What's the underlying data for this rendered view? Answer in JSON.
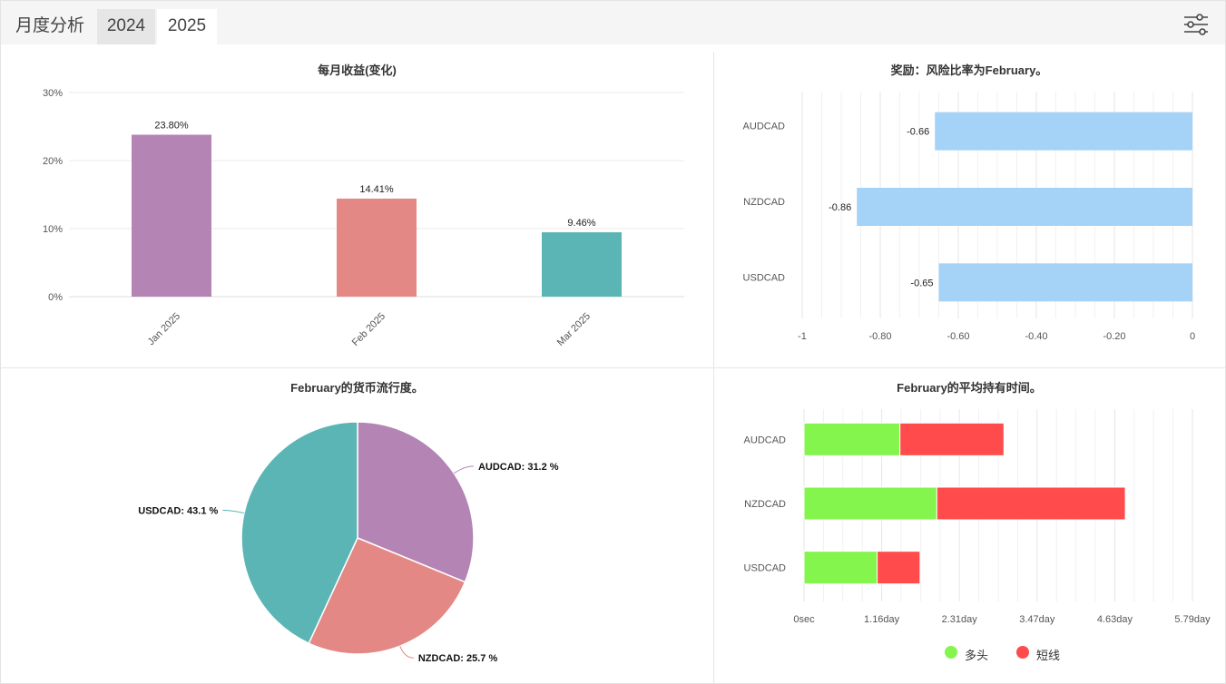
{
  "header": {
    "title": "月度分析",
    "tabs": [
      {
        "label": "2024",
        "active": false
      },
      {
        "label": "2025",
        "active": true
      }
    ],
    "settings_icon": "sliders-icon"
  },
  "colors": {
    "jan": "#b484b4",
    "feb": "#e38885",
    "mar": "#5bb5b5",
    "rr_bar": "#a5d2f7",
    "long": "#84f54d",
    "short": "#ff4b4b"
  },
  "chart_data": [
    {
      "type": "bar",
      "title": "每月收益(变化)",
      "categories": [
        "Jan 2025",
        "Feb 2025",
        "Mar 2025"
      ],
      "values": [
        23.8,
        14.41,
        9.46
      ],
      "value_labels": [
        "23.80%",
        "14.41%",
        "9.46%"
      ],
      "ylim": [
        0,
        30
      ],
      "yticks": [
        "0%",
        "10%",
        "20%",
        "30%"
      ],
      "grid": true
    },
    {
      "type": "bar",
      "orientation": "horizontal",
      "title": "奖励：风险比率为February。",
      "categories": [
        "AUDCAD",
        "NZDCAD",
        "USDCAD"
      ],
      "values": [
        -0.66,
        -0.86,
        -0.65
      ],
      "value_labels": [
        "-0.66",
        "-0.86",
        "-0.65"
      ],
      "xlim": [
        -1,
        0
      ],
      "xticks": [
        "-1",
        "-0.80",
        "-0.60",
        "-0.40",
        "-0.20",
        "0"
      ],
      "grid": true
    },
    {
      "type": "pie",
      "title": "February的货币流行度。",
      "slices": [
        {
          "name": "AUDCAD",
          "value": 31.2,
          "label": "AUDCAD: 31.2 %"
        },
        {
          "name": "NZDCAD",
          "value": 25.7,
          "label": "NZDCAD: 25.7 %"
        },
        {
          "name": "USDCAD",
          "value": 43.1,
          "label": "USDCAD: 43.1 %"
        }
      ]
    },
    {
      "type": "bar",
      "orientation": "horizontal",
      "stacked": true,
      "title": "February的平均持有时间。",
      "categories": [
        "AUDCAD",
        "NZDCAD",
        "USDCAD"
      ],
      "series": [
        {
          "name": "多头",
          "values": [
            1.43,
            1.98,
            1.09
          ]
        },
        {
          "name": "短线",
          "values": [
            1.55,
            2.81,
            0.64
          ]
        }
      ],
      "xlim": [
        0,
        5.79
      ],
      "xticks": [
        "0sec",
        "1.16day",
        "2.31day",
        "3.47day",
        "4.63day",
        "5.79day"
      ],
      "legend": "bottom",
      "grid": true
    }
  ]
}
